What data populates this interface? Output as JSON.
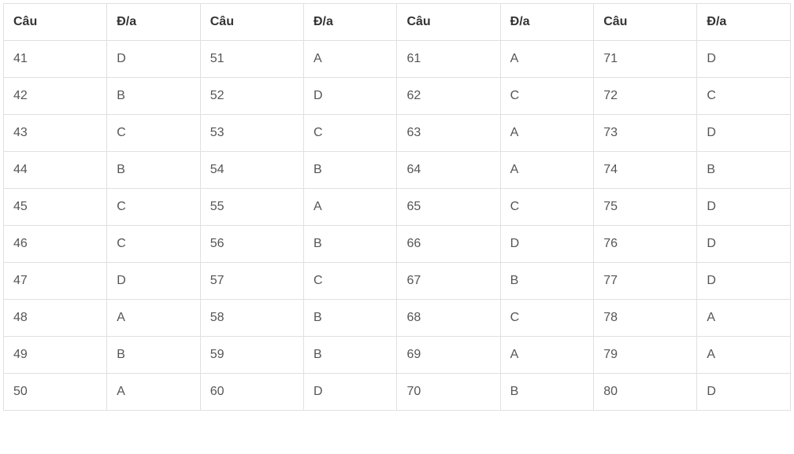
{
  "table": {
    "type": "table",
    "columns": [
      "Câu",
      "Đ/a",
      "Câu",
      "Đ/a",
      "Câu",
      "Đ/a",
      "Câu",
      "Đ/a"
    ],
    "rows": [
      [
        "41",
        "D",
        "51",
        "A",
        "61",
        "A",
        "71",
        "D"
      ],
      [
        "42",
        "B",
        "52",
        "D",
        "62",
        "C",
        "72",
        "C"
      ],
      [
        "43",
        "C",
        "53",
        "C",
        "63",
        "A",
        "73",
        "D"
      ],
      [
        "44",
        "B",
        "54",
        "B",
        "64",
        "A",
        "74",
        "B"
      ],
      [
        "45",
        "C",
        "55",
        "A",
        "65",
        "C",
        "75",
        "D"
      ],
      [
        "46",
        "C",
        "56",
        "B",
        "66",
        "D",
        "76",
        "D"
      ],
      [
        "47",
        "D",
        "57",
        "C",
        "67",
        "B",
        "77",
        "D"
      ],
      [
        "48",
        "A",
        "58",
        "B",
        "68",
        "C",
        "78",
        "A"
      ],
      [
        "49",
        "B",
        "59",
        "B",
        "69",
        "A",
        "79",
        "A"
      ],
      [
        "50",
        "A",
        "60",
        "D",
        "70",
        "B",
        "80",
        "D"
      ]
    ],
    "border_color": "#e0e0e0",
    "header_text_color": "#333333",
    "cell_text_color": "#555555",
    "background_color": "#ffffff",
    "font_size": 16,
    "cell_padding": "14px 12px"
  }
}
